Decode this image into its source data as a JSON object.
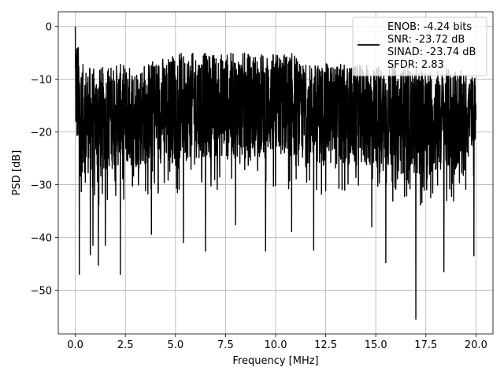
{
  "chart_data": {
    "type": "line",
    "xlabel": "Frequency [MHz]",
    "ylabel": "PSD [dB]",
    "xlim": [
      -0.85,
      20.85
    ],
    "ylim": [
      -58.3,
      2.8
    ],
    "xticks": [
      0.0,
      2.5,
      5.0,
      7.5,
      10.0,
      12.5,
      15.0,
      17.5,
      20.0
    ],
    "xtick_labels": [
      "0.0",
      "2.5",
      "5.0",
      "7.5",
      "10.0",
      "12.5",
      "15.0",
      "17.5",
      "20.0"
    ],
    "yticks": [
      0,
      -10,
      -20,
      -30,
      -40,
      -50
    ],
    "ytick_labels": [
      "0",
      "−10",
      "−20",
      "−30",
      "−40",
      "−50"
    ],
    "grid": true,
    "legend_position": "top-right",
    "line_color": "#000000",
    "series": [
      {
        "legend_lines": [
          "ENOB: -4.24 bits",
          "SNR: -23.72 dB",
          "SINAD: -23.74 dB",
          "SFDR: 2.83"
        ],
        "envelope": {
          "x": [
            0.0,
            0.3,
            1.0,
            2.0,
            3.0,
            4.0,
            5.0,
            6.0,
            7.0,
            8.0,
            9.0,
            10.0,
            11.0,
            11.2,
            12.0,
            13.0,
            14.0,
            15.0,
            16.0,
            17.0,
            18.0,
            19.0,
            20.0
          ],
          "upper": [
            0.0,
            -7.0,
            -8.0,
            -7.0,
            -7.5,
            -6.0,
            -5.0,
            -5.0,
            -5.0,
            -5.0,
            -5.0,
            -5.0,
            -5.0,
            -7.0,
            -7.0,
            -7.0,
            -7.5,
            -7.0,
            -7.5,
            -8.0,
            -8.0,
            -8.0,
            -9.5
          ],
          "lower": [
            -22.0,
            -28.0,
            -28.0,
            -27.0,
            -27.0,
            -26.0,
            -26.0,
            -25.0,
            -25.0,
            -25.0,
            -25.0,
            -25.0,
            -25.0,
            -26.0,
            -26.0,
            -27.0,
            -27.0,
            -27.0,
            -28.0,
            -28.0,
            -28.0,
            -28.0,
            -22.0
          ]
        },
        "dips": [
          {
            "x": 0.2,
            "y": -47.0
          },
          {
            "x": 0.75,
            "y": -43.3
          },
          {
            "x": 0.88,
            "y": -41.5
          },
          {
            "x": 1.15,
            "y": -45.3
          },
          {
            "x": 1.5,
            "y": -41.5
          },
          {
            "x": 2.25,
            "y": -47.0
          },
          {
            "x": 3.8,
            "y": -39.4
          },
          {
            "x": 5.4,
            "y": -41.0
          },
          {
            "x": 6.5,
            "y": -42.6
          },
          {
            "x": 8.0,
            "y": -37.6
          },
          {
            "x": 9.5,
            "y": -42.6
          },
          {
            "x": 10.8,
            "y": -38.9
          },
          {
            "x": 11.9,
            "y": -42.4
          },
          {
            "x": 14.8,
            "y": -38.0
          },
          {
            "x": 15.5,
            "y": -44.8
          },
          {
            "x": 17.0,
            "y": -55.5
          },
          {
            "x": 18.4,
            "y": -46.5
          },
          {
            "x": 19.9,
            "y": -43.5
          }
        ]
      }
    ]
  }
}
